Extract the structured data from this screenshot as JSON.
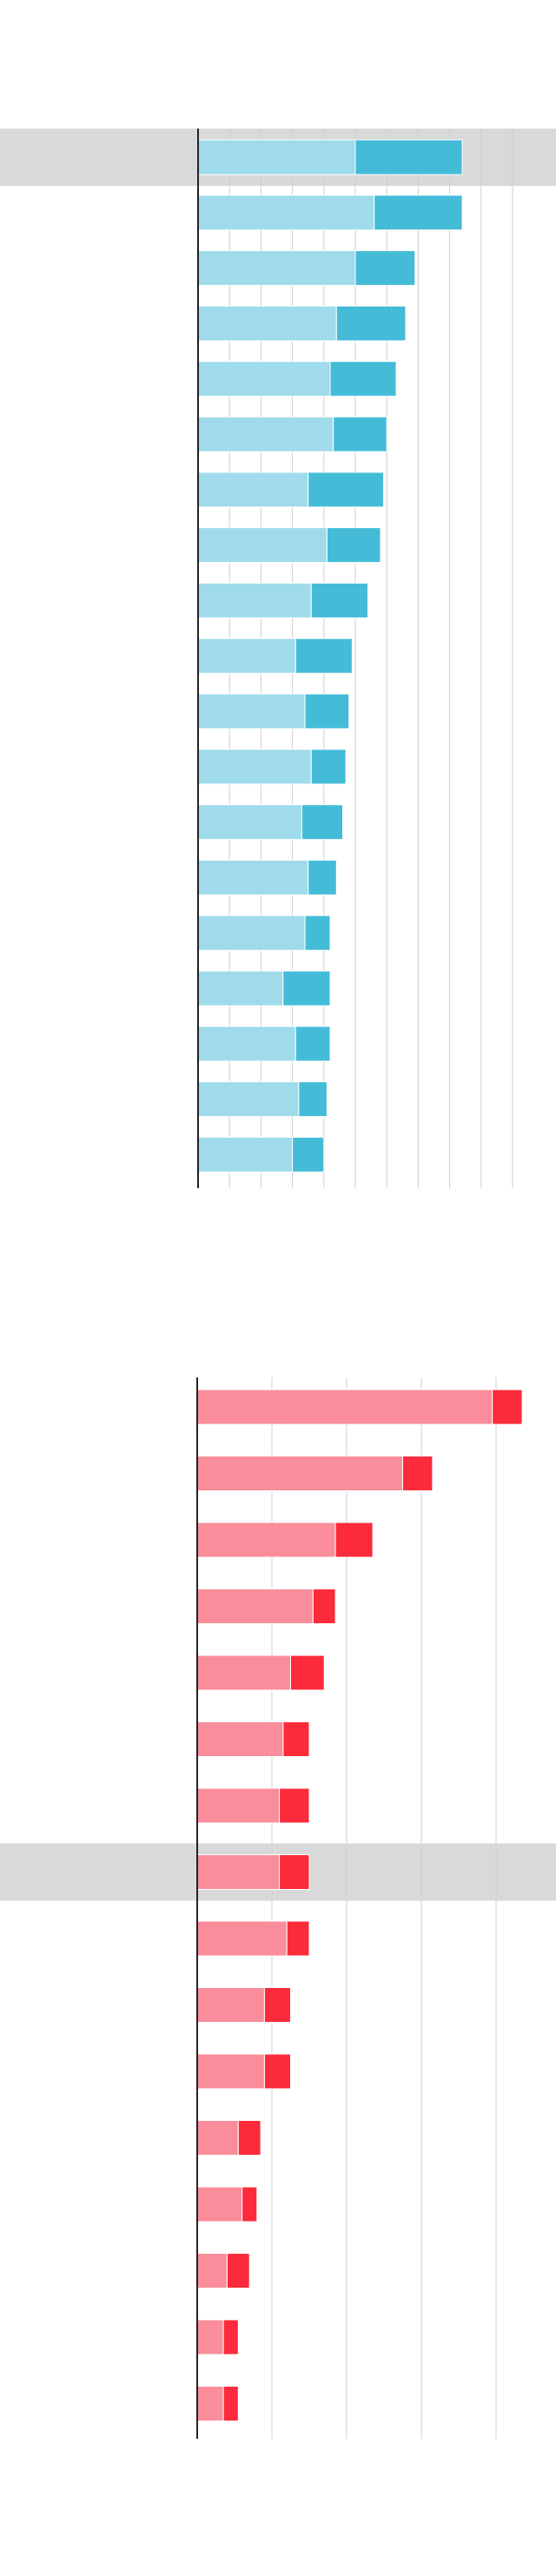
{
  "chart_data": [
    {
      "type": "bar",
      "orientation": "horizontal",
      "stacked": true,
      "title": "",
      "xlabel": "",
      "ylabel": "",
      "xlim": [
        0,
        100
      ],
      "grid": true,
      "categories": [
        "",
        "",
        "",
        "",
        "",
        "",
        "",
        "",
        "",
        "",
        "",
        "",
        "",
        "",
        "",
        "",
        "",
        "",
        ""
      ],
      "highlighted_category_index": 0,
      "series": [
        {
          "values": [
            50,
            56,
            50,
            44,
            42,
            43,
            35,
            41,
            36,
            31,
            34,
            36,
            33,
            35,
            34,
            27,
            31,
            32,
            30
          ]
        },
        {
          "values": [
            34,
            28,
            19,
            22,
            21,
            17,
            24,
            17,
            18,
            18,
            14,
            11,
            13,
            9,
            8,
            15,
            11,
            9,
            10
          ]
        }
      ],
      "colors": [
        "#9fdbeb",
        "#44bcd8"
      ],
      "highlight_color": "#d9d9d9"
    },
    {
      "type": "bar",
      "orientation": "horizontal",
      "stacked": true,
      "title": "",
      "xlabel": "",
      "ylabel": "",
      "xlim": [
        0,
        100
      ],
      "grid": true,
      "categories": [
        "",
        "",
        "",
        "",
        "",
        "",
        "",
        "",
        "",
        "",
        "",
        "",
        "",
        "",
        "",
        ""
      ],
      "highlighted_category_index": 7,
      "series": [
        {
          "values": [
            79,
            55,
            37,
            31,
            25,
            23,
            22,
            22,
            24,
            18,
            18,
            11,
            12,
            8,
            7,
            7
          ]
        },
        {
          "values": [
            8,
            8,
            10,
            6,
            9,
            7,
            8,
            8,
            6,
            7,
            7,
            6,
            4,
            6,
            4,
            4
          ]
        }
      ],
      "colors": [
        "#fa8d9b",
        "#fb2b3b"
      ],
      "highlight_color": "#d9d9d9"
    }
  ]
}
